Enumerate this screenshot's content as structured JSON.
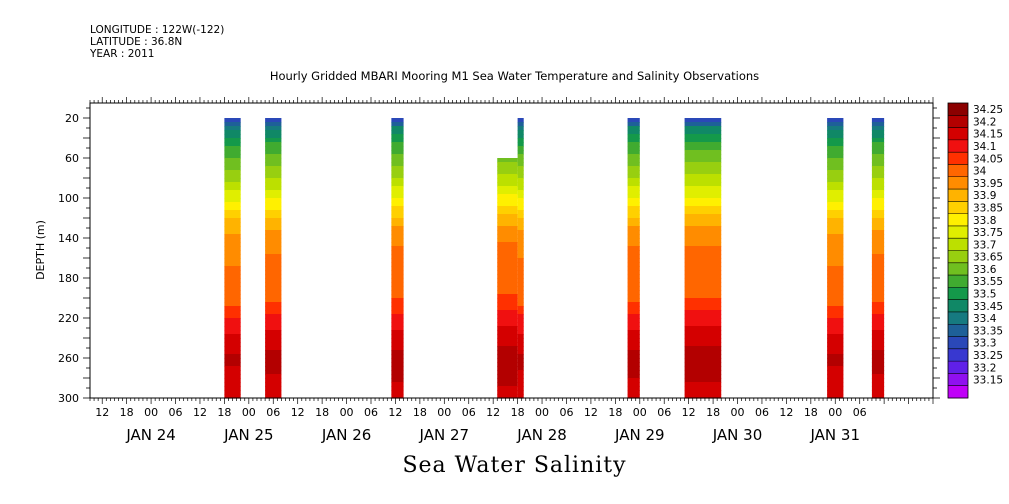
{
  "header": {
    "longitude": "LONGITUDE : 122W(-122)",
    "latitude": "LATITUDE : 36.8N",
    "year": "YEAR : 2011"
  },
  "title": "Hourly Gridded MBARI Mooring M1 Sea Water Temperature and Salinity Observations",
  "footer": "Sea Water Salinity",
  "chart_data": {
    "type": "heatmap",
    "title": "Hourly Gridded MBARI Mooring M1 Sea Water Temperature and Salinity Observations",
    "xlabel": "",
    "ylabel": "DEPTH (m)",
    "x_start": "JAN 23 09:00",
    "x_range_hours": [
      0,
      207
    ],
    "ylim": [
      300,
      5
    ],
    "y_ticks": [
      20,
      60,
      100,
      140,
      180,
      220,
      260,
      300
    ],
    "x_hour_ticks": [
      "12",
      "18",
      "00",
      "06",
      "12",
      "18",
      "00",
      "06",
      "12",
      "18",
      "00",
      "06",
      "12",
      "18",
      "00",
      "06",
      "12",
      "18",
      "00",
      "06",
      "12",
      "18",
      "00",
      "06",
      "12",
      "18",
      "00",
      "06",
      "12",
      "18",
      "00",
      "06"
    ],
    "x_day_labels": [
      "JAN 24",
      "JAN 25",
      "JAN 26",
      "JAN 27",
      "JAN 28",
      "JAN 29",
      "JAN 30",
      "JAN 31"
    ],
    "colorbar": {
      "levels": [
        "34.25",
        "34.2",
        "34.15",
        "34.1",
        "34.05",
        "34",
        "33.95",
        "33.9",
        "33.85",
        "33.8",
        "33.75",
        "33.7",
        "33.65",
        "33.6",
        "33.55",
        "33.5",
        "33.45",
        "33.4",
        "33.35",
        "33.3",
        "33.25",
        "33.2",
        "33.15"
      ],
      "colors": [
        "#8b0000",
        "#b30000",
        "#d40000",
        "#f01010",
        "#ff3000",
        "#ff6600",
        "#ff8c00",
        "#ffb300",
        "#ffd000",
        "#fff000",
        "#e0ee00",
        "#bce000",
        "#98cf10",
        "#70bf20",
        "#40ab30",
        "#14994a",
        "#108866",
        "#167a80",
        "#1e6098",
        "#2a48b8",
        "#3838d0",
        "#6020e8",
        "#9010f0",
        "#c000f8"
      ]
    },
    "profile": [
      {
        "depth": 20,
        "value": 33.3
      },
      {
        "depth": 30,
        "value": 33.45
      },
      {
        "depth": 45,
        "value": 33.55
      },
      {
        "depth": 60,
        "value": 33.62
      },
      {
        "depth": 80,
        "value": 33.7
      },
      {
        "depth": 100,
        "value": 33.8
      },
      {
        "depth": 115,
        "value": 33.88
      },
      {
        "depth": 130,
        "value": 33.95
      },
      {
        "depth": 150,
        "value": 34.0
      },
      {
        "depth": 180,
        "value": 34.02
      },
      {
        "depth": 205,
        "value": 34.05
      },
      {
        "depth": 220,
        "value": 34.12
      },
      {
        "depth": 240,
        "value": 34.17
      },
      {
        "depth": 260,
        "value": 34.22
      },
      {
        "depth": 280,
        "value": 34.2
      },
      {
        "depth": 300,
        "value": 34.17
      }
    ],
    "data_columns": [
      {
        "x_start": 33,
        "x_end": 37,
        "top_depth": 20
      },
      {
        "x_start": 43,
        "x_end": 47,
        "top_depth": 20
      },
      {
        "x_start": 74,
        "x_end": 77,
        "top_depth": 20
      },
      {
        "x_start": 100,
        "x_end": 105,
        "top_depth": 60
      },
      {
        "x_start": 105,
        "x_end": 106.5,
        "top_depth": 20
      },
      {
        "x_start": 132,
        "x_end": 135,
        "top_depth": 20
      },
      {
        "x_start": 146,
        "x_end": 155,
        "top_depth": 20
      },
      {
        "x_start": 181,
        "x_end": 185,
        "top_depth": 20
      },
      {
        "x_start": 192,
        "x_end": 195,
        "top_depth": 20
      }
    ]
  }
}
